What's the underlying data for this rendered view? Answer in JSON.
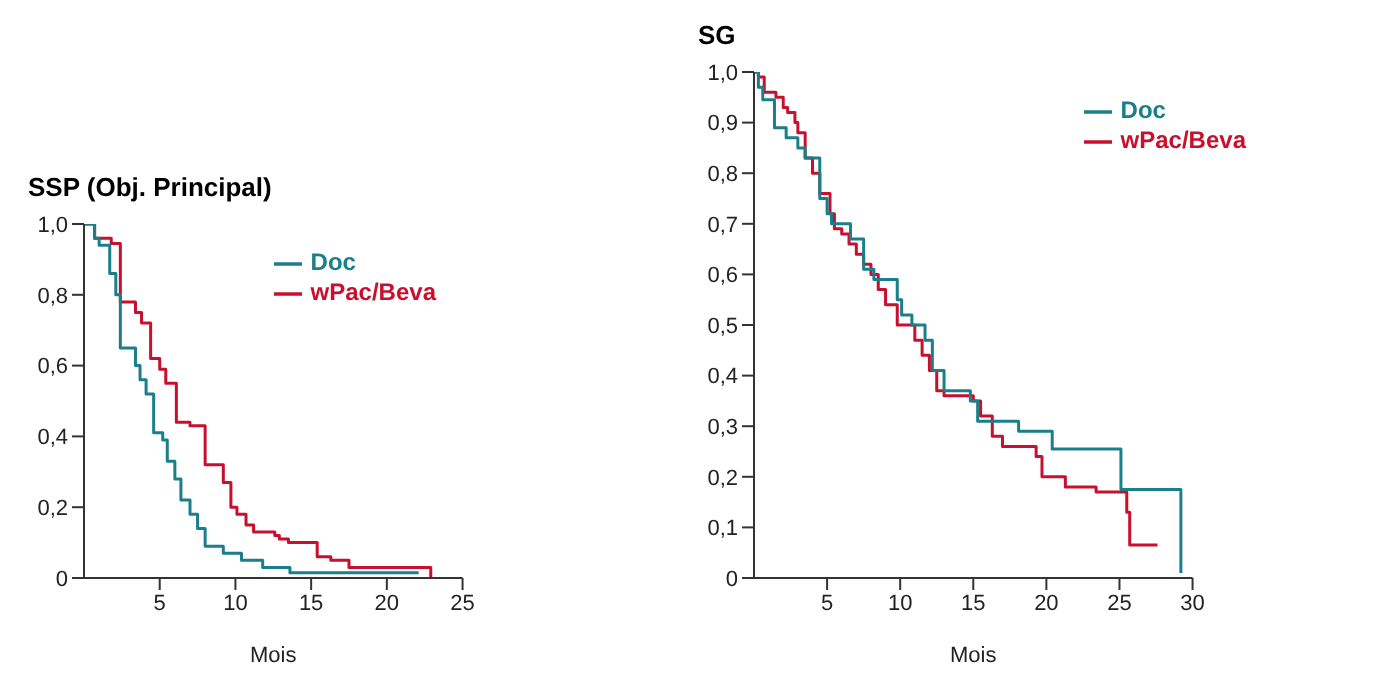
{
  "chart_data": [
    {
      "type": "step",
      "title": "SSP (Obj. Principal)",
      "xlabel": "Mois",
      "xlim": [
        0,
        25
      ],
      "xticks": [
        5,
        10,
        15,
        20,
        25
      ],
      "ylim": [
        0,
        1
      ],
      "yticks": [
        0,
        {
          "value": 0.2,
          "label": "0,2"
        },
        {
          "value": 0.4,
          "label": "0,4"
        },
        {
          "value": 0.6,
          "label": "0,6"
        },
        {
          "value": 0.8,
          "label": "0,8"
        },
        {
          "value": 1,
          "label": "1,0"
        }
      ],
      "grid": false,
      "legend": "top right",
      "series": [
        {
          "name": "wPac/Beva",
          "color": "#c8102e",
          "x": [
            0,
            0.7,
            1.8,
            2.4,
            3.4,
            3.8,
            4.4,
            5.0,
            5.4,
            6.1,
            7.0,
            8.0,
            8.9,
            9.2,
            9.7,
            10.1,
            10.7,
            11.2,
            12.6,
            12.9,
            13.5,
            14.6,
            15.4,
            16.3,
            17.5,
            22.9,
            22.9
          ],
          "values": [
            1.0,
            0.96,
            0.945,
            0.78,
            0.75,
            0.72,
            0.62,
            0.59,
            0.55,
            0.44,
            0.43,
            0.32,
            0.32,
            0.27,
            0.2,
            0.18,
            0.15,
            0.13,
            0.12,
            0.11,
            0.1,
            0.1,
            0.06,
            0.05,
            0.03,
            0.03,
            0
          ]
        },
        {
          "name": "Doc",
          "color": "#1a7f8a",
          "x": [
            0,
            0.7,
            1.0,
            1.7,
            2.1,
            2.4,
            3.4,
            3.7,
            4.1,
            4.6,
            5.2,
            5.5,
            6.0,
            6.4,
            7.0,
            7.5,
            8.0,
            9.2,
            10.4,
            11.8,
            13.6,
            22.1
          ],
          "values": [
            1.0,
            0.96,
            0.94,
            0.86,
            0.8,
            0.65,
            0.6,
            0.56,
            0.52,
            0.41,
            0.39,
            0.33,
            0.28,
            0.22,
            0.18,
            0.14,
            0.09,
            0.07,
            0.05,
            0.03,
            0.015,
            0.015
          ]
        }
      ]
    },
    {
      "type": "step",
      "title": "SG",
      "xlabel": "Mois",
      "xlim": [
        0,
        30
      ],
      "xticks": [
        5,
        10,
        15,
        20,
        25,
        30
      ],
      "ylim": [
        0,
        1
      ],
      "yticks": [
        0,
        {
          "value": 0.1,
          "label": "0,1"
        },
        {
          "value": 0.2,
          "label": "0,2"
        },
        {
          "value": 0.3,
          "label": "0,3"
        },
        {
          "value": 0.4,
          "label": "0,4"
        },
        {
          "value": 0.5,
          "label": "0,5"
        },
        {
          "value": 0.6,
          "label": "0,6"
        },
        {
          "value": 0.7,
          "label": "0,7"
        },
        {
          "value": 0.8,
          "label": "0,8"
        },
        {
          "value": 0.9,
          "label": "0,9"
        },
        {
          "value": 1,
          "label": "1,0"
        }
      ],
      "grid": false,
      "legend": "top right",
      "series": [
        {
          "name": "wPac/Beva",
          "color": "#c8102e",
          "x": [
            0,
            0.3,
            0.7,
            1.5,
            2.0,
            2.3,
            2.8,
            3.0,
            3.5,
            4.0,
            4.5,
            5.2,
            5.5,
            6.0,
            6.5,
            7.0,
            7.5,
            8.0,
            8.5,
            9.0,
            9.8,
            11.0,
            11.5,
            12.0,
            12.5,
            13.0,
            15.0,
            15.5,
            16.3,
            17.0,
            19.3,
            19.7,
            21.3,
            23.4,
            25.5,
            25.7,
            27.6
          ],
          "values": [
            1.0,
            0.99,
            0.96,
            0.95,
            0.93,
            0.92,
            0.9,
            0.88,
            0.83,
            0.8,
            0.76,
            0.72,
            0.69,
            0.68,
            0.66,
            0.64,
            0.62,
            0.6,
            0.57,
            0.54,
            0.5,
            0.47,
            0.44,
            0.41,
            0.37,
            0.36,
            0.35,
            0.32,
            0.28,
            0.26,
            0.24,
            0.2,
            0.18,
            0.17,
            0.13,
            0.065,
            0.065
          ]
        },
        {
          "name": "Doc",
          "color": "#1a7f8a",
          "x": [
            0,
            0.3,
            0.6,
            1.4,
            2.2,
            3.0,
            3.5,
            4.5,
            5.0,
            5.3,
            6.6,
            7.5,
            8.2,
            9.8,
            10.1,
            10.8,
            11.7,
            12.2,
            13.0,
            14.8,
            15.3,
            18.1,
            20.4,
            25.1,
            29.2
          ],
          "values": [
            1.0,
            0.97,
            0.945,
            0.89,
            0.87,
            0.85,
            0.83,
            0.75,
            0.72,
            0.7,
            0.67,
            0.61,
            0.59,
            0.55,
            0.52,
            0.5,
            0.47,
            0.41,
            0.37,
            0.35,
            0.31,
            0.29,
            0.255,
            0.175,
            0.01
          ]
        }
      ]
    }
  ]
}
